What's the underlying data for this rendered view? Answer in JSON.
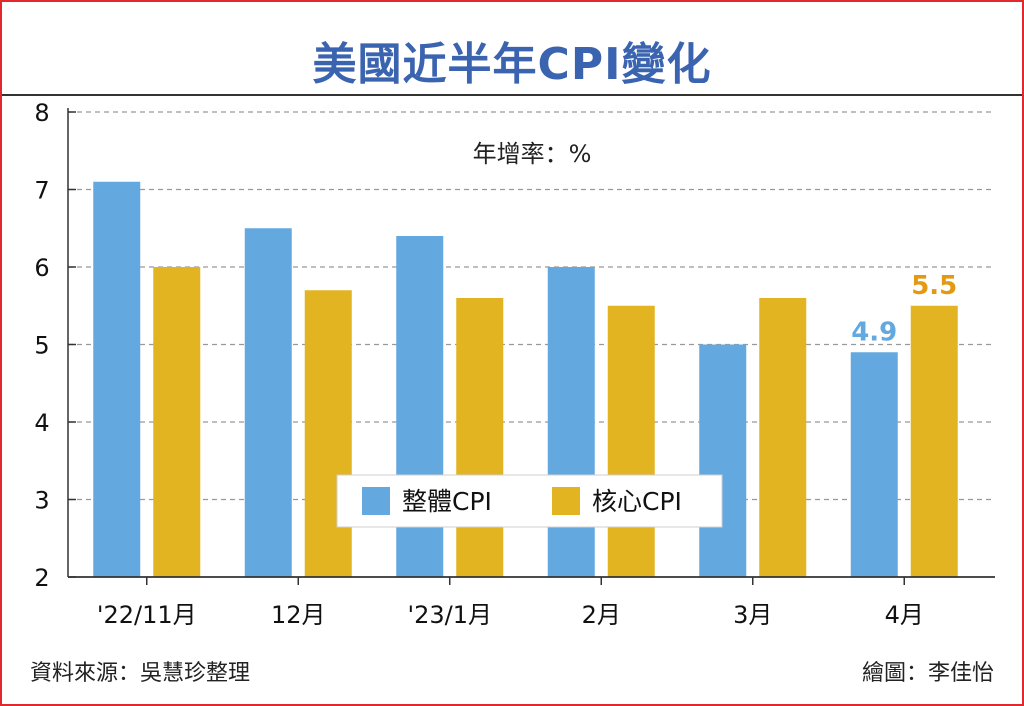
{
  "chart_data": {
    "type": "bar",
    "title": "美國近半年CPI變化",
    "unit_label": "年增率：%",
    "categories": [
      "'22/11月",
      "12月",
      "'23/1月",
      "2月",
      "3月",
      "4月"
    ],
    "series": [
      {
        "name": "整體CPI",
        "color": "#64a8e0",
        "values": [
          7.1,
          6.5,
          6.4,
          6.0,
          5.0,
          4.9
        ]
      },
      {
        "name": "核心CPI",
        "color": "#e3b421",
        "values": [
          6.0,
          5.7,
          5.6,
          5.5,
          5.6,
          5.5
        ]
      }
    ],
    "data_labels": [
      {
        "series": 0,
        "index": 5,
        "text": "4.9",
        "color": "#64a8e0"
      },
      {
        "series": 1,
        "index": 5,
        "text": "5.5",
        "color": "#e39a12"
      }
    ],
    "ylim": [
      2,
      8
    ],
    "yticks": [
      "2",
      "3",
      "4",
      "5",
      "6",
      "7",
      "8"
    ],
    "grid": true,
    "legend": "bottom-center"
  },
  "footer": {
    "source": "資料來源：吳慧珍整理",
    "credit": "繪圖：李佳怡"
  }
}
